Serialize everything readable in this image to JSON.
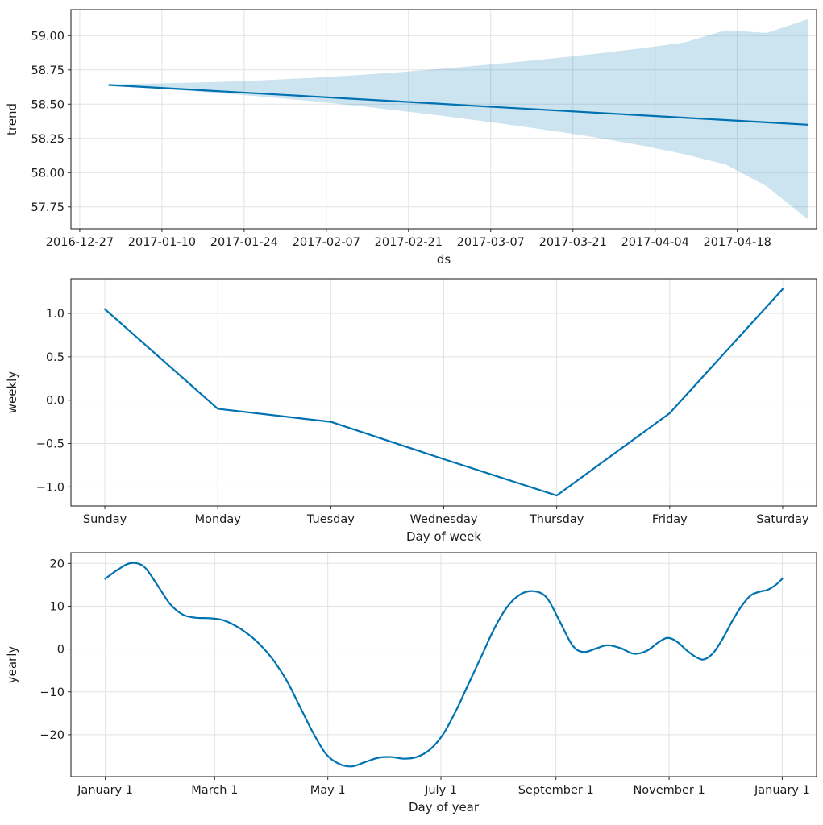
{
  "chart_data": [
    {
      "id": "trend",
      "type": "line",
      "xlabel": "ds",
      "ylabel": "trend",
      "line_color": "#0072B2",
      "band_color": "#0072B2",
      "band_opacity": 0.2,
      "grid": true,
      "legend_position": "none",
      "xdomain": [
        -1.5,
        125.5
      ],
      "ydomain": [
        57.59,
        59.19
      ],
      "xticks": [
        {
          "v": 0,
          "label": "2016-12-27"
        },
        {
          "v": 14,
          "label": "2017-01-10"
        },
        {
          "v": 28,
          "label": "2017-01-24"
        },
        {
          "v": 42,
          "label": "2017-02-07"
        },
        {
          "v": 56,
          "label": "2017-02-21"
        },
        {
          "v": 70,
          "label": "2017-03-07"
        },
        {
          "v": 84,
          "label": "2017-03-21"
        },
        {
          "v": 98,
          "label": "2017-04-04"
        },
        {
          "v": 112,
          "label": "2017-04-18"
        }
      ],
      "yticks": [
        {
          "v": 57.75,
          "label": "57.75"
        },
        {
          "v": 58.0,
          "label": "58.00"
        },
        {
          "v": 58.25,
          "label": "58.25"
        },
        {
          "v": 58.5,
          "label": "58.50"
        },
        {
          "v": 58.75,
          "label": "58.75"
        },
        {
          "v": 59.0,
          "label": "59.00"
        }
      ],
      "x_unit": "days since 2016-12-27",
      "x": [
        5,
        12,
        19,
        26,
        33,
        40,
        47,
        54,
        61,
        68,
        75,
        82,
        89,
        96,
        103,
        110,
        117,
        124
      ],
      "series": [
        {
          "name": "trend",
          "smooth": false,
          "values": [
            58.64,
            58.623,
            58.606,
            58.589,
            58.572,
            58.555,
            58.538,
            58.521,
            58.504,
            58.486,
            58.469,
            58.452,
            58.435,
            58.418,
            58.401,
            58.384,
            58.367,
            58.35
          ]
        }
      ],
      "band": {
        "upper": [
          58.645,
          58.65,
          58.657,
          58.666,
          58.678,
          58.693,
          58.711,
          58.732,
          58.756,
          58.782,
          58.81,
          58.84,
          58.873,
          58.91,
          58.95,
          59.04,
          59.02,
          59.12
        ],
        "lower": [
          58.635,
          58.616,
          58.596,
          58.573,
          58.548,
          58.52,
          58.489,
          58.455,
          58.419,
          58.38,
          58.339,
          58.296,
          58.25,
          58.196,
          58.135,
          58.06,
          57.9,
          57.66
        ]
      }
    },
    {
      "id": "weekly",
      "type": "line",
      "xlabel": "Day of week",
      "ylabel": "weekly",
      "line_color": "#0072B2",
      "grid": true,
      "legend_position": "none",
      "xdomain": [
        -0.3,
        6.3
      ],
      "ydomain": [
        -1.22,
        1.4
      ],
      "xticks": [
        {
          "v": 0,
          "label": "Sunday"
        },
        {
          "v": 1,
          "label": "Monday"
        },
        {
          "v": 2,
          "label": "Tuesday"
        },
        {
          "v": 3,
          "label": "Wednesday"
        },
        {
          "v": 4,
          "label": "Thursday"
        },
        {
          "v": 5,
          "label": "Friday"
        },
        {
          "v": 6,
          "label": "Saturday"
        }
      ],
      "yticks": [
        {
          "v": -1.0,
          "label": "−1.0"
        },
        {
          "v": -0.5,
          "label": "−0.5"
        },
        {
          "v": 0.0,
          "label": "0.0"
        },
        {
          "v": 0.5,
          "label": "0.5"
        },
        {
          "v": 1.0,
          "label": "1.0"
        }
      ],
      "x": [
        0,
        1,
        2,
        3,
        4,
        5,
        6
      ],
      "series": [
        {
          "name": "weekly",
          "smooth": false,
          "values": [
            1.05,
            -0.1,
            -0.25,
            -0.68,
            -1.1,
            -0.15,
            1.28
          ]
        }
      ]
    },
    {
      "id": "yearly",
      "type": "line",
      "xlabel": "Day of year",
      "ylabel": "yearly",
      "line_color": "#0072B2",
      "grid": true,
      "legend_position": "none",
      "xdomain": [
        -17.5,
        384.5
      ],
      "ydomain": [
        -29.8,
        22.5
      ],
      "xticks": [
        {
          "v": 1,
          "label": "January 1"
        },
        {
          "v": 60,
          "label": "March 1"
        },
        {
          "v": 121,
          "label": "May 1"
        },
        {
          "v": 182,
          "label": "July 1"
        },
        {
          "v": 244,
          "label": "September 1"
        },
        {
          "v": 305,
          "label": "November 1"
        },
        {
          "v": 366,
          "label": "January 1"
        }
      ],
      "yticks": [
        {
          "v": -20,
          "label": "−20"
        },
        {
          "v": -10,
          "label": "−10"
        },
        {
          "v": 0,
          "label": "0"
        },
        {
          "v": 10,
          "label": "10"
        },
        {
          "v": 20,
          "label": "20"
        }
      ],
      "x_unit": "day of year",
      "x": [
        1,
        8,
        15,
        22,
        29,
        36,
        43,
        50,
        57,
        64,
        71,
        78,
        85,
        92,
        99,
        106,
        113,
        120,
        127,
        134,
        141,
        148,
        155,
        162,
        169,
        176,
        183,
        190,
        197,
        204,
        211,
        218,
        225,
        232,
        239,
        246,
        253,
        259,
        266,
        272,
        279,
        286,
        293,
        299,
        304,
        309,
        315,
        320,
        324,
        329,
        334,
        339,
        344,
        349,
        354,
        358,
        362,
        366
      ],
      "series": [
        {
          "name": "yearly",
          "smooth": true,
          "values": [
            16.4,
            18.6,
            20.1,
            19.2,
            15.0,
            10.5,
            8.0,
            7.3,
            7.2,
            6.8,
            5.5,
            3.5,
            0.8,
            -2.8,
            -7.5,
            -13.5,
            -19.5,
            -24.5,
            -26.8,
            -27.4,
            -26.4,
            -25.4,
            -25.2,
            -25.6,
            -25.2,
            -23.5,
            -20.0,
            -14.5,
            -8.0,
            -1.5,
            5.0,
            10.0,
            12.8,
            13.5,
            12.0,
            6.5,
            0.8,
            -0.7,
            0.2,
            0.9,
            0.2,
            -1.1,
            -0.4,
            1.5,
            2.6,
            1.8,
            -0.5,
            -2.0,
            -2.4,
            -0.8,
            2.5,
            6.5,
            10.0,
            12.5,
            13.4,
            13.8,
            14.8,
            16.4
          ]
        }
      ]
    }
  ]
}
